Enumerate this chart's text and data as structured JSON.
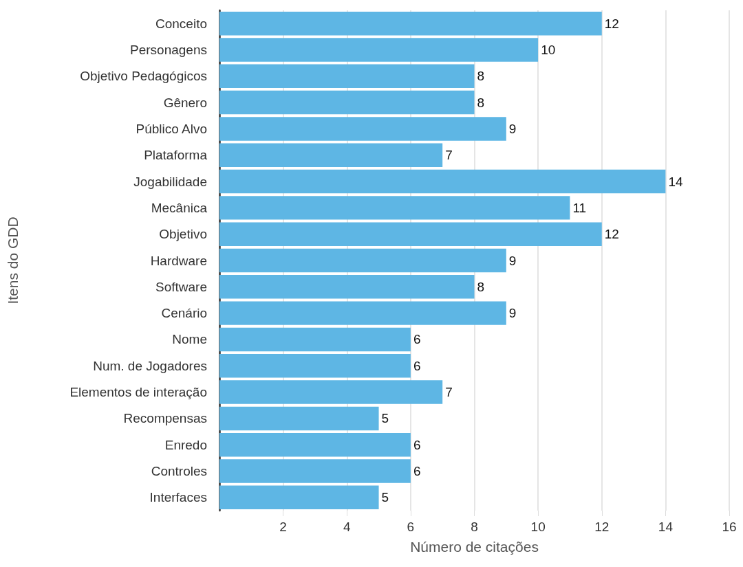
{
  "chart_data": {
    "type": "bar",
    "orientation": "horizontal",
    "xlabel": "Número de citações",
    "ylabel": "Itens do GDD",
    "categories": [
      "Conceito",
      "Personagens",
      "Objetivo Pedagógicos",
      "Gênero",
      "Público Alvo",
      "Plataforma",
      "Jogabilidade",
      "Mecânica",
      "Objetivo",
      "Hardware",
      "Software",
      "Cenário",
      "Nome",
      "Num. de Jogadores",
      "Elementos de interação",
      "Recompensas",
      "Enredo",
      "Controles",
      "Interfaces"
    ],
    "values": [
      12,
      10,
      8,
      8,
      9,
      7,
      14,
      11,
      12,
      9,
      8,
      9,
      6,
      6,
      7,
      5,
      6,
      6,
      5
    ],
    "color": "#5eb6e4",
    "xlim": [
      0,
      16
    ],
    "xticks": [
      2,
      4,
      6,
      8,
      10,
      12,
      14,
      16
    ],
    "grid": "x",
    "data_labels": true
  }
}
